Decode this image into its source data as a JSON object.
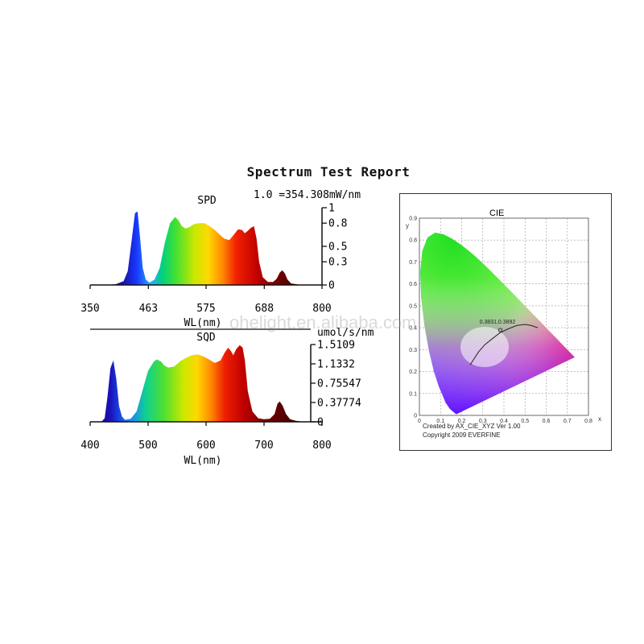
{
  "report": {
    "title": "Spectrum Test Report",
    "watermark": "ohelight.en.alibaba.com"
  },
  "chart_data": [
    {
      "type": "area",
      "title": "SPD",
      "subtitle": "1.0 =354.308mW/nm",
      "xlabel": "WL(nm)",
      "ylabel": "",
      "xlim": [
        350,
        800
      ],
      "ylim": [
        0,
        1
      ],
      "x_ticks": [
        "350",
        "463",
        "575",
        "688",
        "800"
      ],
      "y_ticks": [
        "1",
        "0.8",
        "0.5",
        "0.3",
        "0"
      ],
      "series": [
        {
          "values_x": [
            350,
            380,
            400,
            415,
            423,
            430,
            437,
            442,
            447,
            452,
            458,
            465,
            475,
            485,
            495,
            505,
            515,
            522,
            528,
            535,
            543,
            552,
            562,
            572,
            582,
            592,
            600,
            610,
            620,
            630,
            637,
            645,
            650,
            656,
            662,
            668,
            673,
            678,
            685,
            695,
            705,
            712,
            718,
            723,
            728,
            733,
            740,
            750,
            760,
            780,
            800
          ],
          "values_y": [
            0,
            0,
            0.01,
            0.05,
            0.18,
            0.55,
            0.93,
            0.95,
            0.6,
            0.22,
            0.07,
            0.03,
            0.07,
            0.22,
            0.55,
            0.8,
            0.88,
            0.83,
            0.76,
            0.73,
            0.75,
            0.79,
            0.8,
            0.8,
            0.76,
            0.71,
            0.66,
            0.6,
            0.58,
            0.66,
            0.72,
            0.71,
            0.67,
            0.7,
            0.74,
            0.76,
            0.6,
            0.3,
            0.1,
            0.04,
            0.04,
            0.08,
            0.16,
            0.19,
            0.15,
            0.07,
            0.02,
            0.01,
            0,
            0,
            0
          ]
        }
      ]
    },
    {
      "type": "area",
      "title": "SQD",
      "subtitle": "umol/s/nm",
      "xlabel": "WL(nm)",
      "ylabel": "",
      "xlim": [
        400,
        800
      ],
      "ylim": [
        0,
        1.5109
      ],
      "x_ticks": [
        "400",
        "500",
        "600",
        "700",
        "800"
      ],
      "y_ticks": [
        "1.5109",
        "1.1332",
        "0.75547",
        "0.37774",
        "0"
      ],
      "series": [
        {
          "values_x": [
            400,
            420,
            425,
            430,
            435,
            440,
            445,
            450,
            455,
            460,
            470,
            480,
            490,
            500,
            510,
            515,
            522,
            528,
            535,
            545,
            555,
            565,
            575,
            585,
            595,
            605,
            615,
            625,
            632,
            638,
            643,
            647,
            652,
            658,
            663,
            667,
            672,
            680,
            690,
            700,
            710,
            718,
            723,
            727,
            732,
            738,
            745,
            755,
            770,
            800
          ],
          "values_y": [
            0,
            0.01,
            0.07,
            0.5,
            1.05,
            1.2,
            0.85,
            0.3,
            0.1,
            0.04,
            0.06,
            0.2,
            0.6,
            1.0,
            1.18,
            1.22,
            1.18,
            1.1,
            1.06,
            1.08,
            1.18,
            1.25,
            1.3,
            1.32,
            1.28,
            1.22,
            1.15,
            1.2,
            1.35,
            1.45,
            1.38,
            1.3,
            1.42,
            1.5,
            1.45,
            1.2,
            0.6,
            0.2,
            0.07,
            0.05,
            0.06,
            0.15,
            0.35,
            0.4,
            0.32,
            0.15,
            0.05,
            0.02,
            0,
            0
          ]
        }
      ]
    },
    {
      "type": "scatter",
      "title": "CIE",
      "xlabel": "x",
      "ylabel": "y",
      "xlim": [
        0,
        0.8
      ],
      "ylim": [
        0,
        0.9
      ],
      "x_ticks": [
        "0",
        "0.1",
        "0.2",
        "0.3",
        "0.4",
        "0.5",
        "0.6",
        "0.7",
        "0.8"
      ],
      "y_ticks": [
        "0.9",
        "0.8",
        "0.7",
        "0.6",
        "0.5",
        "0.4",
        "0.3",
        "0.2",
        "0.1",
        "0"
      ],
      "point": {
        "x": 0.3831,
        "y": 0.3892,
        "label": "0.3831,0.3892"
      },
      "footer_lines": [
        "Created by AX_CIE_XYZ Ver 1.00",
        "Copyright 2009 EVERFINE"
      ]
    }
  ]
}
